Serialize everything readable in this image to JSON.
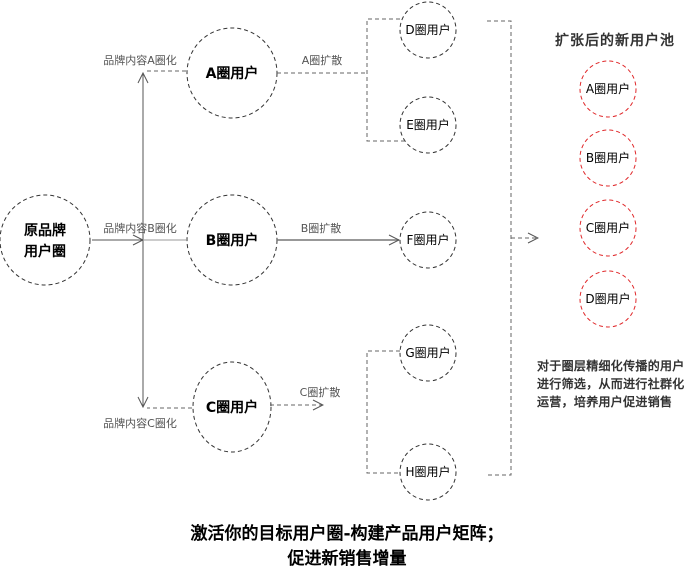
{
  "source": {
    "line1": "原品牌",
    "line2": "用户圈"
  },
  "circles": {
    "a": "A圈用户",
    "b": "B圈用户",
    "c": "C圈用户",
    "d": "D圈用户",
    "e": "E圈用户",
    "f": "F圈用户",
    "g": "G圈用户",
    "h": "H圈用户"
  },
  "edge_labels": {
    "content_a": "品牌内容A圈化",
    "content_b": "品牌内容B圈化",
    "content_c": "品牌内容C圈化",
    "spread_a": "A圈扩散",
    "spread_b": "B圈扩散",
    "spread_c": "C圈扩散"
  },
  "pool": {
    "title": "扩张后的新用户池",
    "items": [
      "A圈用户",
      "B圈用户",
      "C圈用户",
      "D圈用户"
    ],
    "color": "#e0292b"
  },
  "note": "对于圈层精细化传播的用户进行筛选，从而进行社群化运营，培养用户促进销售",
  "bottom_title": {
    "line1": "激活你的目标用户圈-构建产品用户矩阵；",
    "line2": "促进新销售增量"
  }
}
